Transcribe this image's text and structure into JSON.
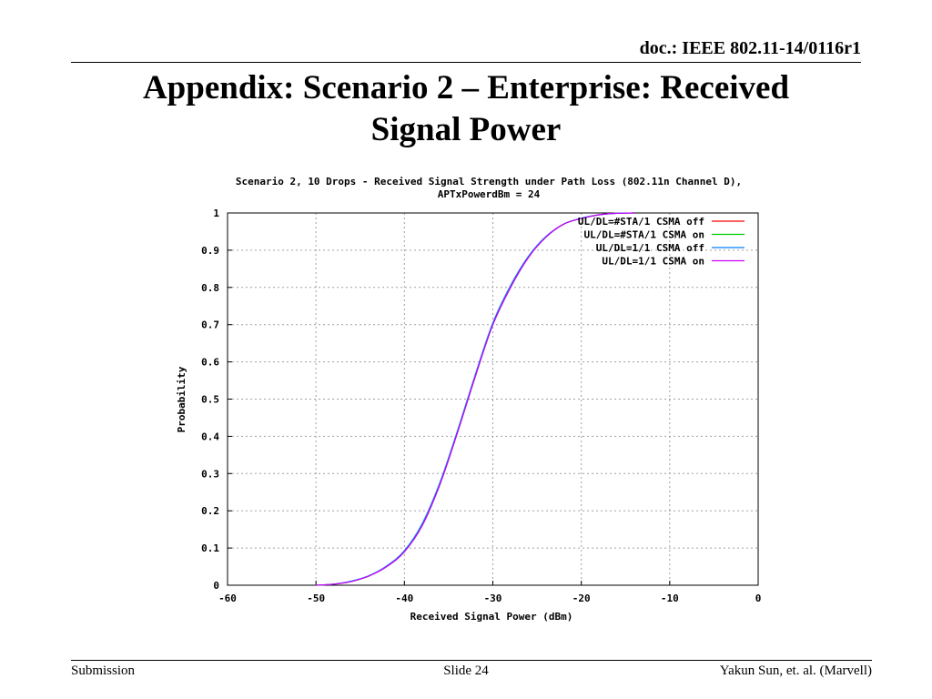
{
  "header": {
    "doc_id": "doc.: IEEE 802.11-14/0116r1",
    "title_line1": "Appendix: Scenario 2 – Enterprise: Received",
    "title_line2": "Signal Power"
  },
  "footer": {
    "left": "Submission",
    "center": "Slide 24",
    "right": "Yakun Sun, et. al. (Marvell)"
  },
  "chart_data": {
    "type": "line",
    "title_line1": "Scenario 2, 10 Drops - Received Signal Strength under Path Loss (802.11n Channel D),",
    "title_line2": "APTxPowerdBm = 24",
    "xlabel": "Received Signal Power (dBm)",
    "ylabel": "Probability",
    "xlim": [
      -60,
      0
    ],
    "ylim": [
      0,
      1
    ],
    "xticks": [
      -60,
      -50,
      -40,
      -30,
      -20,
      -10,
      0
    ],
    "yticks": [
      0,
      0.1,
      0.2,
      0.3,
      0.4,
      0.5,
      0.6,
      0.7,
      0.8,
      0.9,
      1
    ],
    "ytick_labels": [
      "0",
      "0.1",
      "0.2",
      "0.3",
      "0.4",
      "0.5",
      "0.6",
      "0.7",
      "0.8",
      "0.9",
      "1"
    ],
    "grid": true,
    "legend_position": "top-right",
    "series": [
      {
        "name": "UL/DL=#STA/1 CSMA off",
        "color": "#ff0000",
        "x": [
          -50,
          -48,
          -46,
          -44,
          -42,
          -40,
          -38,
          -36,
          -34,
          -32,
          -30,
          -28,
          -26,
          -24,
          -22,
          -20,
          -18,
          -16,
          -14
        ],
        "y": [
          0,
          0.003,
          0.01,
          0.025,
          0.05,
          0.09,
          0.16,
          0.27,
          0.41,
          0.56,
          0.7,
          0.8,
          0.88,
          0.935,
          0.97,
          0.985,
          0.995,
          0.999,
          1.0
        ]
      },
      {
        "name": "UL/DL=#STA/1 CSMA on",
        "color": "#00cc00",
        "x": [
          -50,
          -48,
          -46,
          -44,
          -42,
          -40,
          -38,
          -36,
          -34,
          -32,
          -30,
          -28,
          -26,
          -24,
          -22,
          -20,
          -18,
          -16,
          -14
        ],
        "y": [
          0,
          0.003,
          0.01,
          0.025,
          0.05,
          0.09,
          0.16,
          0.27,
          0.41,
          0.56,
          0.7,
          0.8,
          0.88,
          0.935,
          0.97,
          0.985,
          0.995,
          0.999,
          1.0
        ]
      },
      {
        "name": "UL/DL=1/1 CSMA off",
        "color": "#0080ff",
        "x": [
          -50,
          -48,
          -46,
          -44,
          -42,
          -40,
          -38,
          -36,
          -34,
          -32,
          -30,
          -28,
          -26,
          -24,
          -22,
          -20,
          -18,
          -16,
          -14
        ],
        "y": [
          0,
          0.003,
          0.011,
          0.026,
          0.052,
          0.093,
          0.165,
          0.275,
          0.415,
          0.565,
          0.705,
          0.805,
          0.883,
          0.937,
          0.97,
          0.986,
          0.995,
          0.999,
          1.0
        ]
      },
      {
        "name": "UL/DL=1/1 CSMA on",
        "color": "#cc00ff",
        "x": [
          -50,
          -48,
          -46,
          -44,
          -42,
          -40,
          -38,
          -36,
          -34,
          -32,
          -30,
          -28,
          -26,
          -24,
          -22,
          -20,
          -18,
          -16,
          -14
        ],
        "y": [
          0,
          0.003,
          0.01,
          0.025,
          0.05,
          0.09,
          0.16,
          0.27,
          0.41,
          0.56,
          0.7,
          0.8,
          0.88,
          0.935,
          0.97,
          0.985,
          0.995,
          0.999,
          1.0
        ]
      }
    ]
  }
}
